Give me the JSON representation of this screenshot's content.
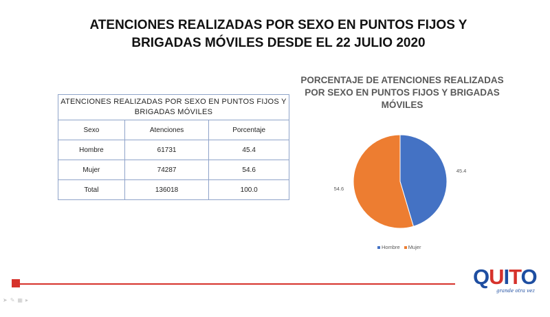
{
  "slide": {
    "title_line1": "ATENCIONES REALIZADAS POR SEXO EN PUNTOS FIJOS Y",
    "title_line2": "BRIGADAS MÓVILES DESDE EL 22 JULIO 2020"
  },
  "table": {
    "caption_line1": "ATENCIONES REALIZADAS POR SEXO EN PUNTOS FIJOS Y",
    "caption_line2": "BRIGADAS MÓVILES",
    "headers": [
      "Sexo",
      "Atenciones",
      "Porcentaje"
    ],
    "rows": [
      [
        "Hombre",
        "61731",
        "45.4"
      ],
      [
        "Mujer",
        "74287",
        "54.6"
      ],
      [
        "Total",
        "136018",
        "100.0"
      ]
    ]
  },
  "chart_data": {
    "type": "pie",
    "title_lines": [
      "PORCENTAJE DE ATENCIONES REALIZADAS",
      "POR SEXO EN PUNTOS FIJOS Y BRIGADAS",
      "MÓVILES"
    ],
    "categories": [
      "Hombre",
      "Mujer"
    ],
    "values": [
      45.4,
      54.6
    ],
    "data_labels": [
      "45.4",
      "54.6"
    ],
    "colors": [
      "#4472c4",
      "#ed7d31"
    ],
    "legend_position": "bottom"
  },
  "logo": {
    "letters": [
      "Q",
      "U",
      "I",
      "T",
      "O"
    ],
    "letter_colors": [
      "#1e4ea1",
      "#d6322b",
      "#1e4ea1",
      "#d6322b",
      "#1e4ea1"
    ],
    "tagline": "grande otra vez"
  },
  "colors": {
    "accent_red": "#d6322b",
    "table_border": "#8ea3c9"
  },
  "nav": {
    "icons": [
      "back-arrow-icon",
      "pen-icon",
      "slides-grid-icon",
      "forward-arrow-icon"
    ]
  }
}
